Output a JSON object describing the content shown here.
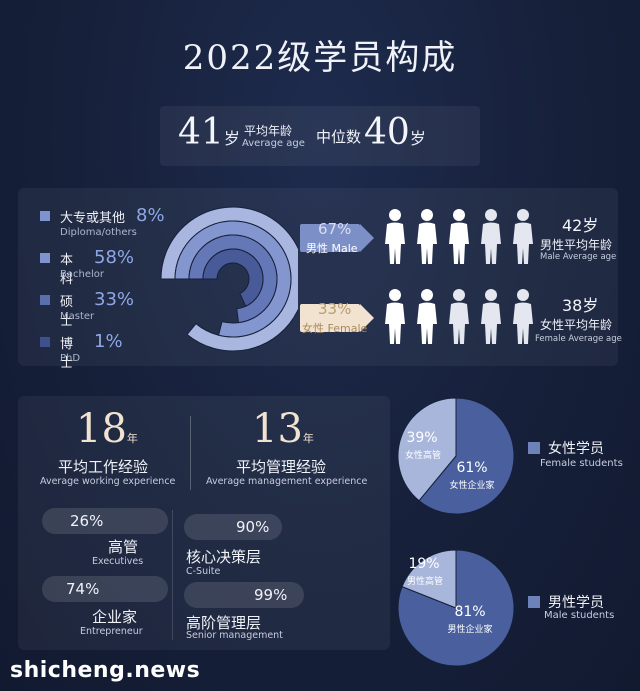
{
  "title": "2022级学员构成",
  "age": {
    "avg_value": "41",
    "avg_unit": "岁",
    "avg_label_cn": "平均年龄",
    "avg_label_en": "Average age",
    "median_label": "中位数",
    "median_value": "40",
    "median_unit": "岁"
  },
  "education": {
    "items": [
      {
        "cn": "大专或其他",
        "pct": "8%",
        "en": "Diploma/others"
      },
      {
        "cn": "本科",
        "pct": "58%",
        "en": "Bachelor"
      },
      {
        "cn": "硕士",
        "pct": "33%",
        "en": "Master"
      },
      {
        "cn": "博士",
        "pct": "1%",
        "en": "PhD"
      }
    ]
  },
  "gender": {
    "male_pct": "67%",
    "male_label": "男性 Male",
    "male_age": "42岁",
    "male_age_cn": "男性平均年龄",
    "male_age_en": "Male Average age",
    "female_pct": "33%",
    "female_label": "女性 Female",
    "female_age": "38岁",
    "female_age_cn": "女性平均年龄",
    "female_age_en": "Female Average age"
  },
  "experience": {
    "work_years": "18",
    "work_unit": "年",
    "work_cn": "平均工作经验",
    "work_en": "Average working experience",
    "mgmt_years": "13",
    "mgmt_unit": "年",
    "mgmt_cn": "平均管理经验",
    "mgmt_en": "Average management experience"
  },
  "roles": {
    "exec_pct": "26%",
    "exec_cn": "高管",
    "exec_en": "Executives",
    "entre_pct": "74%",
    "entre_cn": "企业家",
    "entre_en": "Entrepreneur",
    "csuite_pct": "90%",
    "csuite_cn": "核心决策层",
    "csuite_en": "C-Suite",
    "senior_pct": "99%",
    "senior_cn": "高阶管理层",
    "senior_en": "Senior management"
  },
  "pies": {
    "female": {
      "legend_cn": "女性学员",
      "legend_en": "Female students",
      "exec_pct": "39%",
      "exec_cn": "女性高管",
      "entre_pct": "61%",
      "entre_cn": "女性企业家"
    },
    "male": {
      "legend_cn": "男性学员",
      "legend_en": "Male students",
      "exec_pct": "19%",
      "exec_cn": "男性高管",
      "entre_pct": "81%",
      "entre_cn": "男性企业家"
    }
  },
  "chart_data": [
    {
      "type": "pie",
      "categories": [
        "大专或其他",
        "本科",
        "硕士",
        "博士"
      ],
      "values": [
        8,
        58,
        33,
        1
      ]
    },
    {
      "type": "pie",
      "categories": [
        "女性高管",
        "女性企业家"
      ],
      "values": [
        39,
        61
      ]
    },
    {
      "type": "pie",
      "categories": [
        "男性高管",
        "男性企业家"
      ],
      "values": [
        19,
        81
      ]
    }
  ],
  "watermark": "shicheng.news",
  "colors": {
    "background": "#16203a",
    "accent_blue": "#7d8fc7",
    "cream": "#f1e3cf",
    "pie_light": "#a9b6db",
    "pie_dark": "#4a5f9d"
  }
}
